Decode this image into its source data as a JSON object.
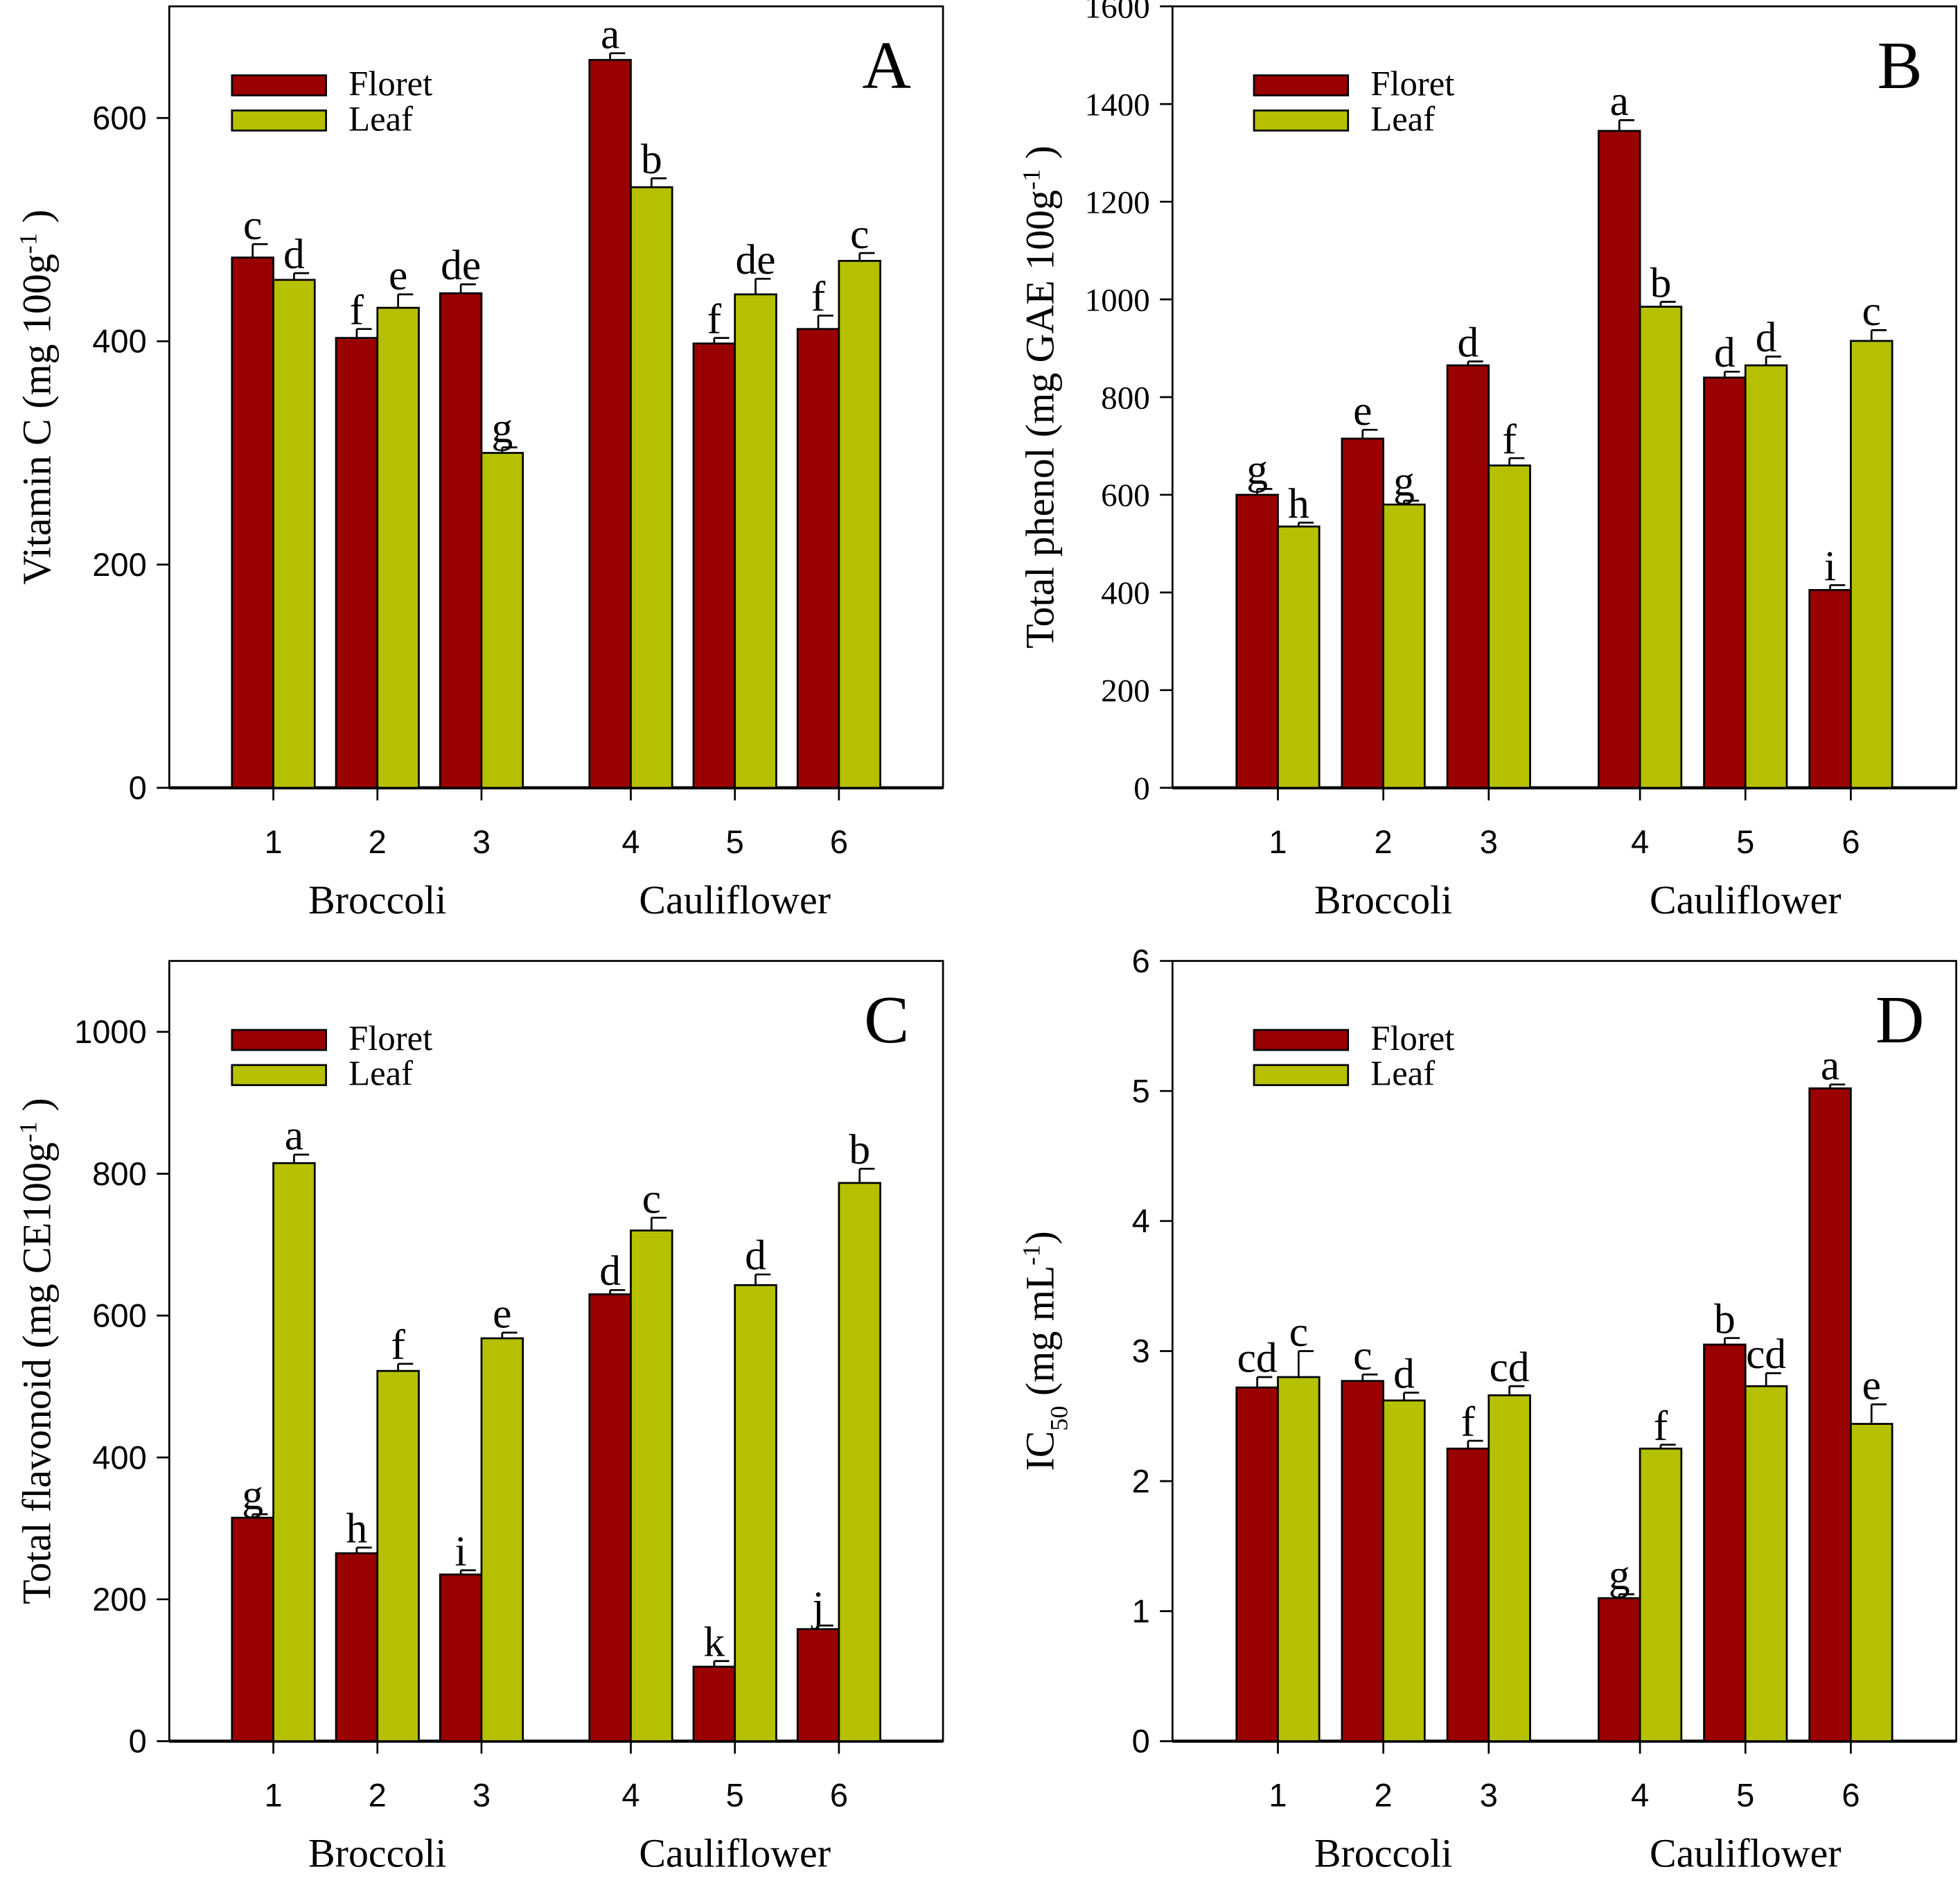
{
  "colors": {
    "floret": "#990000",
    "leaf": "#b5c000",
    "axis": "#000000"
  },
  "chart_data": [
    {
      "type": "bar",
      "panel_label": "A",
      "categories": [
        "1",
        "2",
        "3",
        "4",
        "5",
        "6"
      ],
      "groups": [
        {
          "name": "Broccoli",
          "span": [
            0,
            2
          ]
        },
        {
          "name": "Cauliflower",
          "span": [
            3,
            5
          ]
        }
      ],
      "ylabel": [
        {
          "t": "Vitamin C (mg 100g",
          "s": ""
        },
        {
          "t": "-1",
          "s": "sup"
        },
        {
          "t": " )",
          "s": ""
        }
      ],
      "ylim": [
        0,
        700
      ],
      "yticks": [
        0,
        200,
        400,
        600
      ],
      "legend": [
        "Floret",
        "Leaf"
      ],
      "legend_position": "top-left",
      "series": [
        {
          "name": "Floret",
          "values": [
            475,
            403,
            443,
            652,
            398,
            411
          ],
          "errors": [
            12,
            8,
            8,
            6,
            5,
            12
          ],
          "letters": [
            "c",
            "f",
            "de",
            "a",
            "f",
            "f"
          ]
        },
        {
          "name": "Leaf",
          "values": [
            455,
            430,
            300,
            538,
            442,
            472
          ],
          "errors": [
            6,
            12,
            5,
            8,
            14,
            7
          ],
          "letters": [
            "d",
            "e",
            "g",
            "b",
            "de",
            "c"
          ]
        }
      ]
    },
    {
      "type": "bar",
      "panel_label": "B",
      "categories": [
        "1",
        "2",
        "3",
        "4",
        "5",
        "6"
      ],
      "groups": [
        {
          "name": "Broccoli",
          "span": [
            0,
            2
          ]
        },
        {
          "name": "Cauliflower",
          "span": [
            3,
            5
          ]
        }
      ],
      "ylabel": [
        {
          "t": "Total phenol (mg GAE 100g",
          "s": ""
        },
        {
          "t": "-1",
          "s": "sup"
        },
        {
          "t": " )",
          "s": ""
        }
      ],
      "ylim": [
        0,
        1600
      ],
      "yticks": [
        0,
        200,
        400,
        600,
        800,
        1000,
        1200,
        1400,
        1600
      ],
      "legend": [
        "Floret",
        "Leaf"
      ],
      "legend_position": "top-left",
      "series": [
        {
          "name": "Floret",
          "values": [
            600,
            715,
            865,
            1345,
            840,
            405
          ],
          "errors": [
            12,
            18,
            8,
            22,
            12,
            10
          ],
          "letters": [
            "g",
            "e",
            "d",
            "a",
            "d",
            "i"
          ]
        },
        {
          "name": "Leaf",
          "values": [
            535,
            580,
            660,
            985,
            865,
            915
          ],
          "errors": [
            8,
            8,
            15,
            10,
            18,
            22
          ],
          "letters": [
            "h",
            "g",
            "f",
            "b",
            "d",
            "c"
          ]
        }
      ]
    },
    {
      "type": "bar",
      "panel_label": "C",
      "categories": [
        "1",
        "2",
        "3",
        "4",
        "5",
        "6"
      ],
      "groups": [
        {
          "name": "Broccoli",
          "span": [
            0,
            2
          ]
        },
        {
          "name": "Cauliflower",
          "span": [
            3,
            5
          ]
        }
      ],
      "ylabel": [
        {
          "t": "Total flavonoid (mg CE100g",
          "s": ""
        },
        {
          "t": "-1",
          "s": "sup"
        },
        {
          "t": " )",
          "s": ""
        }
      ],
      "ylim": [
        0,
        1100
      ],
      "yticks": [
        0,
        200,
        400,
        600,
        800,
        1000
      ],
      "legend": [
        "Floret",
        "Leaf"
      ],
      "legend_position": "top-left",
      "series": [
        {
          "name": "Floret",
          "values": [
            315,
            265,
            235,
            630,
            105,
            158
          ],
          "errors": [
            5,
            8,
            6,
            6,
            8,
            5
          ],
          "letters": [
            "g",
            "h",
            "i",
            "d",
            "k",
            "j"
          ]
        },
        {
          "name": "Leaf",
          "values": [
            815,
            522,
            568,
            720,
            643,
            787
          ],
          "errors": [
            12,
            10,
            8,
            18,
            15,
            20
          ],
          "letters": [
            "a",
            "f",
            "e",
            "c",
            "d",
            "b"
          ]
        }
      ]
    },
    {
      "type": "bar",
      "panel_label": "D",
      "categories": [
        "1",
        "2",
        "3",
        "4",
        "5",
        "6"
      ],
      "groups": [
        {
          "name": "Broccoli",
          "span": [
            0,
            2
          ]
        },
        {
          "name": "Cauliflower",
          "span": [
            3,
            5
          ]
        }
      ],
      "ylabel": [
        {
          "t": "IC",
          "s": ""
        },
        {
          "t": "50",
          "s": "sub"
        },
        {
          "t": "  (mg mL",
          "s": ""
        },
        {
          "t": "-1",
          "s": "sup"
        },
        {
          "t": ")",
          "s": ""
        }
      ],
      "ylim": [
        0,
        6
      ],
      "yticks": [
        0,
        1,
        2,
        3,
        4,
        5,
        6
      ],
      "legend": [
        "Floret",
        "Leaf"
      ],
      "legend_position": "top-left",
      "series": [
        {
          "name": "Floret",
          "values": [
            2.72,
            2.77,
            2.25,
            1.1,
            3.05,
            5.02
          ],
          "errors": [
            0.08,
            0.05,
            0.06,
            0.03,
            0.05,
            0.03
          ],
          "letters": [
            "cd",
            "c",
            "f",
            "g",
            "b",
            "a"
          ]
        },
        {
          "name": "Leaf",
          "values": [
            2.8,
            2.62,
            2.66,
            2.25,
            2.73,
            2.44
          ],
          "errors": [
            0.2,
            0.06,
            0.07,
            0.03,
            0.1,
            0.15
          ],
          "letters": [
            "c",
            "d",
            "cd",
            "f",
            "cd",
            "e"
          ]
        }
      ]
    }
  ]
}
